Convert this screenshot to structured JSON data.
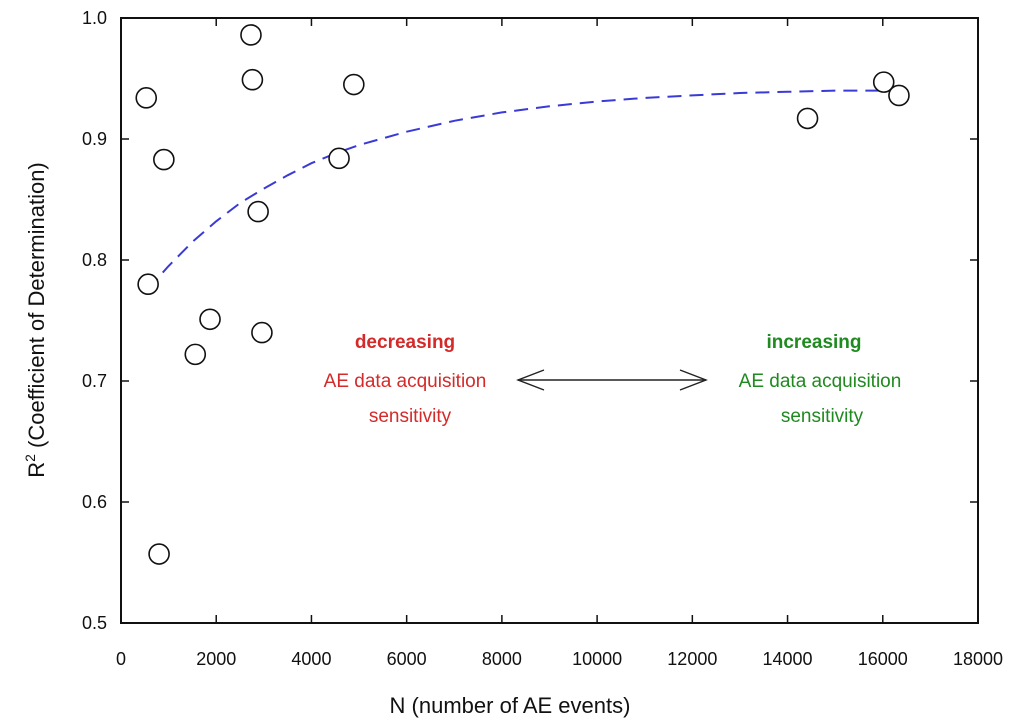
{
  "chart_data": {
    "type": "scatter",
    "xlabel": "N (number of AE events)",
    "ylabel_main": "R",
    "ylabel_sup": "2",
    "ylabel_rest": " (Coefficient of Determination)",
    "xlim": [
      0,
      18000
    ],
    "ylim": [
      0.5,
      1.0
    ],
    "x_ticks": [
      0,
      2000,
      4000,
      6000,
      8000,
      10000,
      12000,
      14000,
      16000,
      18000
    ],
    "y_ticks": [
      "0.5",
      "0.6",
      "0.7",
      "0.8",
      "0.9",
      "1.0"
    ],
    "points": [
      {
        "x": 530,
        "y": 0.934
      },
      {
        "x": 570,
        "y": 0.78
      },
      {
        "x": 800,
        "y": 0.557
      },
      {
        "x": 900,
        "y": 0.883
      },
      {
        "x": 1560,
        "y": 0.722
      },
      {
        "x": 1870,
        "y": 0.751
      },
      {
        "x": 2730,
        "y": 0.986
      },
      {
        "x": 2760,
        "y": 0.949
      },
      {
        "x": 2880,
        "y": 0.84
      },
      {
        "x": 2960,
        "y": 0.74
      },
      {
        "x": 4580,
        "y": 0.884
      },
      {
        "x": 4890,
        "y": 0.945
      },
      {
        "x": 14420,
        "y": 0.917
      },
      {
        "x": 16020,
        "y": 0.947
      },
      {
        "x": 16340,
        "y": 0.936
      }
    ],
    "fit_curve": {
      "color": "#3a3ad6",
      "style": "dashed",
      "x": [
        570,
        1000,
        1500,
        2000,
        2500,
        3000,
        3500,
        4000,
        4500,
        5000,
        6000,
        7000,
        8000,
        9000,
        10000,
        11000,
        12000,
        13000,
        14000,
        15000,
        16000,
        16340
      ],
      "y": [
        0.776,
        0.795,
        0.815,
        0.832,
        0.847,
        0.859,
        0.87,
        0.88,
        0.888,
        0.895,
        0.906,
        0.915,
        0.922,
        0.927,
        0.931,
        0.934,
        0.936,
        0.938,
        0.939,
        0.94,
        0.94,
        0.941
      ]
    },
    "annotations": {
      "left": {
        "title": "decreasing",
        "line1": "AE data acquisition",
        "line2": "sensitivity",
        "color": "#d42a2a"
      },
      "right": {
        "title": "increasing",
        "line1": "AE data acquisition",
        "line2": "sensitivity",
        "color": "#1f8a1f"
      }
    }
  }
}
